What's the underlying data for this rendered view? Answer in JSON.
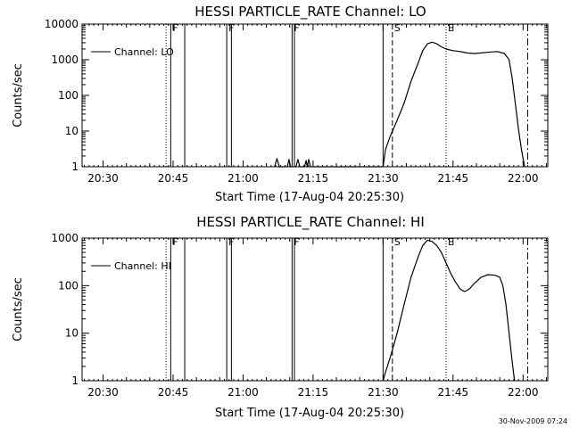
{
  "footer": {
    "timestamp": "30-Nov-2009 07:24"
  },
  "chart_data": [
    {
      "type": "line",
      "title": "HESSI PARTICLE_RATE Channel: LO",
      "xlabel": "Start Time (17-Aug-04 20:25:30)",
      "ylabel": "Counts/sec",
      "y_scale": "log",
      "ylim": [
        1,
        10000
      ],
      "xlim_minutes_after_2025": [
        0.5,
        100.3
      ],
      "x_ticks": [
        "20:30",
        "20:45",
        "21:00",
        "21:15",
        "21:30",
        "21:45",
        "22:00"
      ],
      "y_ticks": [
        "1",
        "10",
        "100",
        "1000",
        "10000"
      ],
      "legend": {
        "label": "Channel: LO",
        "placement": "top-left"
      },
      "grid": false,
      "markers": [
        {
          "time": "20:43:30",
          "style": "dotted",
          "label": ""
        },
        {
          "time": "20:44:30",
          "style": "solid",
          "label": "F"
        },
        {
          "time": "20:47:30",
          "style": "solid",
          "label": ""
        },
        {
          "time": "20:56:30",
          "style": "solid",
          "label": "F"
        },
        {
          "time": "20:57:30",
          "style": "solid",
          "label": ""
        },
        {
          "time": "21:10:30",
          "style": "solid",
          "label": "F"
        },
        {
          "time": "21:11:00",
          "style": "solid",
          "label": ""
        },
        {
          "time": "21:30:00",
          "style": "solid",
          "label": ""
        },
        {
          "time": "21:32:00",
          "style": "dashed",
          "label": "S"
        },
        {
          "time": "21:43:30",
          "style": "dotted",
          "label": "E"
        },
        {
          "time": "22:01:00",
          "style": "dashdot",
          "label": ""
        }
      ],
      "series": [
        {
          "name": "Channel: LO",
          "points": [
            [
              "21:06:45",
              1
            ],
            [
              "21:07:15",
              1.7
            ],
            [
              "21:07:45",
              1
            ],
            [
              "21:09:30",
              1
            ],
            [
              "21:09:50",
              1.6
            ],
            [
              "21:10:10",
              1
            ],
            [
              "21:11:20",
              1
            ],
            [
              "21:11:45",
              1.6
            ],
            [
              "21:12:10",
              1
            ],
            [
              "21:13:10",
              1
            ],
            [
              "21:13:30",
              1.5
            ],
            [
              "21:13:45",
              1
            ],
            [
              "21:14:05",
              1.6
            ],
            [
              "21:14:25",
              1
            ],
            [
              "21:30:00",
              1
            ],
            [
              "21:30:30",
              3
            ],
            [
              "21:31:30",
              7
            ],
            [
              "21:33:00",
              20
            ],
            [
              "21:34:30",
              60
            ],
            [
              "21:36:00",
              250
            ],
            [
              "21:37:30",
              800
            ],
            [
              "21:38:30",
              1800
            ],
            [
              "21:39:30",
              2800
            ],
            [
              "21:40:30",
              3100
            ],
            [
              "21:41:30",
              2800
            ],
            [
              "21:42:30",
              2300
            ],
            [
              "21:43:30",
              2000
            ],
            [
              "21:45:00",
              1800
            ],
            [
              "21:46:30",
              1700
            ],
            [
              "21:48:00",
              1550
            ],
            [
              "21:49:30",
              1500
            ],
            [
              "21:51:00",
              1550
            ],
            [
              "21:53:00",
              1650
            ],
            [
              "21:54:30",
              1700
            ],
            [
              "21:56:00",
              1500
            ],
            [
              "21:57:00",
              1000
            ],
            [
              "21:57:40",
              300
            ],
            [
              "21:58:20",
              60
            ],
            [
              "21:59:00",
              12
            ],
            [
              "21:59:40",
              3
            ],
            [
              "22:00:20",
              1
            ]
          ]
        }
      ]
    },
    {
      "type": "line",
      "title": "HESSI PARTICLE_RATE Channel: HI",
      "xlabel": "Start Time (17-Aug-04 20:25:30)",
      "ylabel": "Counts/sec",
      "y_scale": "log",
      "ylim": [
        1,
        1000
      ],
      "xlim_minutes_after_2025": [
        0.5,
        100.3
      ],
      "x_ticks": [
        "20:30",
        "20:45",
        "21:00",
        "21:15",
        "21:30",
        "21:45",
        "22:00"
      ],
      "y_ticks": [
        "1",
        "10",
        "100",
        "1000"
      ],
      "legend": {
        "label": "Channel: HI",
        "placement": "top-left"
      },
      "grid": false,
      "markers": [
        {
          "time": "20:43:30",
          "style": "dotted",
          "label": ""
        },
        {
          "time": "20:44:30",
          "style": "solid",
          "label": "F"
        },
        {
          "time": "20:47:30",
          "style": "solid",
          "label": ""
        },
        {
          "time": "20:56:30",
          "style": "solid",
          "label": "F"
        },
        {
          "time": "20:57:30",
          "style": "solid",
          "label": ""
        },
        {
          "time": "21:10:30",
          "style": "solid",
          "label": "F"
        },
        {
          "time": "21:11:00",
          "style": "solid",
          "label": ""
        },
        {
          "time": "21:30:00",
          "style": "solid",
          "label": ""
        },
        {
          "time": "21:32:00",
          "style": "dashed",
          "label": "S"
        },
        {
          "time": "21:43:30",
          "style": "dotted",
          "label": "E"
        },
        {
          "time": "22:01:00",
          "style": "dashdot",
          "label": ""
        }
      ],
      "series": [
        {
          "name": "Channel: HI",
          "points": [
            [
              "21:30:00",
              1
            ],
            [
              "21:30:30",
              1.5
            ],
            [
              "21:31:30",
              3
            ],
            [
              "21:33:00",
              10
            ],
            [
              "21:34:30",
              40
            ],
            [
              "21:36:00",
              150
            ],
            [
              "21:37:30",
              400
            ],
            [
              "21:38:30",
              700
            ],
            [
              "21:39:30",
              900
            ],
            [
              "21:40:30",
              850
            ],
            [
              "21:41:30",
              700
            ],
            [
              "21:42:30",
              500
            ],
            [
              "21:43:30",
              300
            ],
            [
              "21:44:30",
              180
            ],
            [
              "21:45:30",
              120
            ],
            [
              "21:46:30",
              85
            ],
            [
              "21:47:30",
              75
            ],
            [
              "21:48:30",
              85
            ],
            [
              "21:49:30",
              110
            ],
            [
              "21:51:00",
              150
            ],
            [
              "21:52:30",
              170
            ],
            [
              "21:54:00",
              165
            ],
            [
              "21:55:00",
              150
            ],
            [
              "21:55:40",
              100
            ],
            [
              "21:56:20",
              40
            ],
            [
              "21:57:00",
              10
            ],
            [
              "21:57:40",
              2.5
            ],
            [
              "21:58:10",
              1
            ]
          ]
        }
      ]
    }
  ]
}
